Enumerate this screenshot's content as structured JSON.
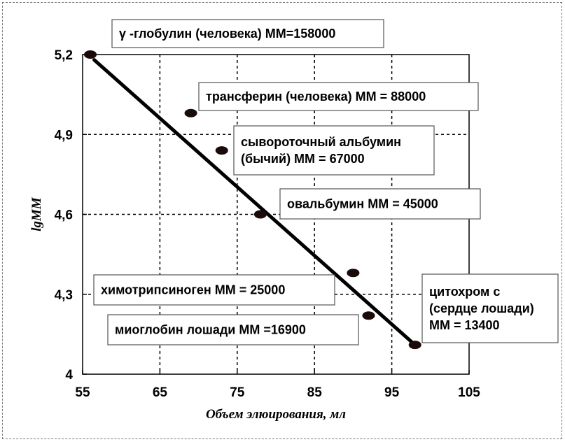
{
  "chart_data": {
    "type": "scatter",
    "title": "",
    "xlabel": "Объем элюирования, мл",
    "ylabel": "lgMM",
    "xlim": [
      55,
      105
    ],
    "ylim": [
      4.0,
      5.2
    ],
    "xticks": [
      55,
      65,
      75,
      85,
      95,
      105
    ],
    "xtick_labels": [
      "55",
      "65",
      "75",
      "85",
      "95",
      "105"
    ],
    "yticks": [
      4.0,
      4.3,
      4.6,
      4.9,
      5.2
    ],
    "ytick_labels": [
      "4",
      "4,3",
      "4,6",
      "4,9",
      "5,2"
    ],
    "grid": true,
    "legend": "none",
    "series": [
      {
        "points": [
          {
            "x": 56,
            "y": 5.2
          },
          {
            "x": 69,
            "y": 4.98
          },
          {
            "x": 73,
            "y": 4.84
          },
          {
            "x": 78,
            "y": 4.6
          },
          {
            "x": 90,
            "y": 4.38
          },
          {
            "x": 92,
            "y": 4.22
          },
          {
            "x": 98,
            "y": 4.11
          }
        ]
      }
    ],
    "trendline": {
      "x": [
        56.5,
        98
      ],
      "y": [
        5.18,
        4.11
      ]
    },
    "annotations": [
      {
        "lines": [
          "γ -глобулин (человека)  ММ=158000"
        ]
      },
      {
        "lines": [
          "трансферин (человека) ММ = 88000"
        ]
      },
      {
        "lines": [
          "сывороточный альбумин",
          "(бычий) ММ = 67000"
        ]
      },
      {
        "lines": [
          "овальбумин ММ = 45000"
        ]
      },
      {
        "lines": [
          "химотрипсиноген ММ = 25000"
        ]
      },
      {
        "lines": [
          "миоглобин лошади ММ =16900"
        ]
      },
      {
        "lines": [
          "цитохром с",
          "(сердце лошади)",
          "ММ = 13400"
        ]
      }
    ]
  }
}
